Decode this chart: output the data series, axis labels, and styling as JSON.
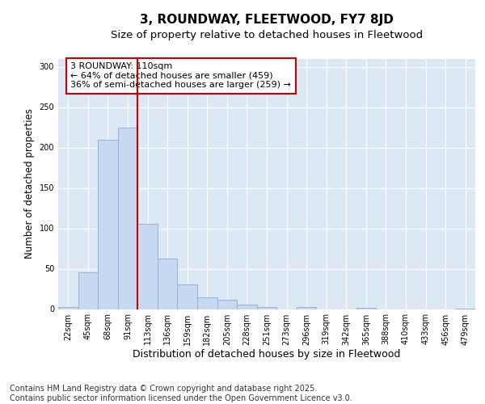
{
  "title": "3, ROUNDWAY, FLEETWOOD, FY7 8JD",
  "subtitle": "Size of property relative to detached houses in Fleetwood",
  "xlabel": "Distribution of detached houses by size in Fleetwood",
  "ylabel": "Number of detached properties",
  "categories": [
    "22sqm",
    "45sqm",
    "68sqm",
    "91sqm",
    "113sqm",
    "136sqm",
    "159sqm",
    "182sqm",
    "205sqm",
    "228sqm",
    "251sqm",
    "273sqm",
    "296sqm",
    "319sqm",
    "342sqm",
    "365sqm",
    "388sqm",
    "410sqm",
    "433sqm",
    "456sqm",
    "479sqm"
  ],
  "values": [
    3,
    46,
    210,
    225,
    106,
    63,
    31,
    15,
    12,
    6,
    3,
    0,
    3,
    0,
    0,
    2,
    0,
    0,
    0,
    0,
    1
  ],
  "bar_color": "#c6d9f0",
  "bar_edge_color": "#8ab4d8",
  "vline_color": "#cc0000",
  "vline_pos": 3.5,
  "annotation_text": "3 ROUNDWAY: 110sqm\n← 64% of detached houses are smaller (459)\n36% of semi-detached houses are larger (259) →",
  "annotation_box_facecolor": "#ffffff",
  "annotation_box_edgecolor": "#cc0000",
  "ylim": [
    0,
    310
  ],
  "yticks": [
    0,
    50,
    100,
    150,
    200,
    250,
    300
  ],
  "plot_bg_color": "#dde8f5",
  "fig_bg_color": "#ffffff",
  "grid_color": "#ffffff",
  "footer": "Contains HM Land Registry data © Crown copyright and database right 2025.\nContains public sector information licensed under the Open Government Licence v3.0.",
  "title_fontsize": 11,
  "subtitle_fontsize": 9.5,
  "xlabel_fontsize": 9,
  "ylabel_fontsize": 8.5,
  "tick_fontsize": 7,
  "annotation_fontsize": 8,
  "footer_fontsize": 7
}
